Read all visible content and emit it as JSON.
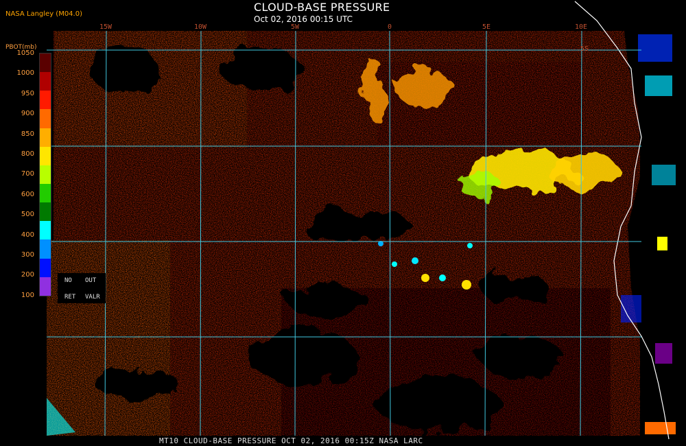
{
  "provider": "NASA Langley (M04.0)",
  "title": "CLOUD-BASE PRESSURE",
  "subtitle": "Oct 02, 2016 00:15 UTC",
  "footer": "MT10   CLOUD-BASE PRESSURE   OCT 02, 2016 00:15Z   NASA LARC",
  "longitude_labels": [
    "15W",
    "10W",
    "5W",
    "0",
    "5E",
    "10E"
  ],
  "latitude_labels": [
    "5S"
  ],
  "legend": {
    "unit": "PBOT(mb)",
    "ticks": [
      "1050",
      "1000",
      "950",
      "900",
      "850",
      "800",
      "700",
      "600",
      "500",
      "400",
      "300",
      "200",
      "100"
    ],
    "colors": [
      "#5a0000",
      "#b00000",
      "#ff1a00",
      "#ff6a00",
      "#ffae00",
      "#ffe600",
      "#b8ff00",
      "#22cc00",
      "#007a00",
      "#00ffff",
      "#0090ff",
      "#0010ff",
      "#9030e0"
    ],
    "nodata": {
      "no": "NO",
      "out": "OUT",
      "ret": "RET",
      "valr": "VALR"
    }
  },
  "colors": {
    "title": "#ffffff",
    "provider": "#ffa500",
    "grid": "#40c8e0",
    "coast": "#ffffff",
    "background": "#000000"
  }
}
